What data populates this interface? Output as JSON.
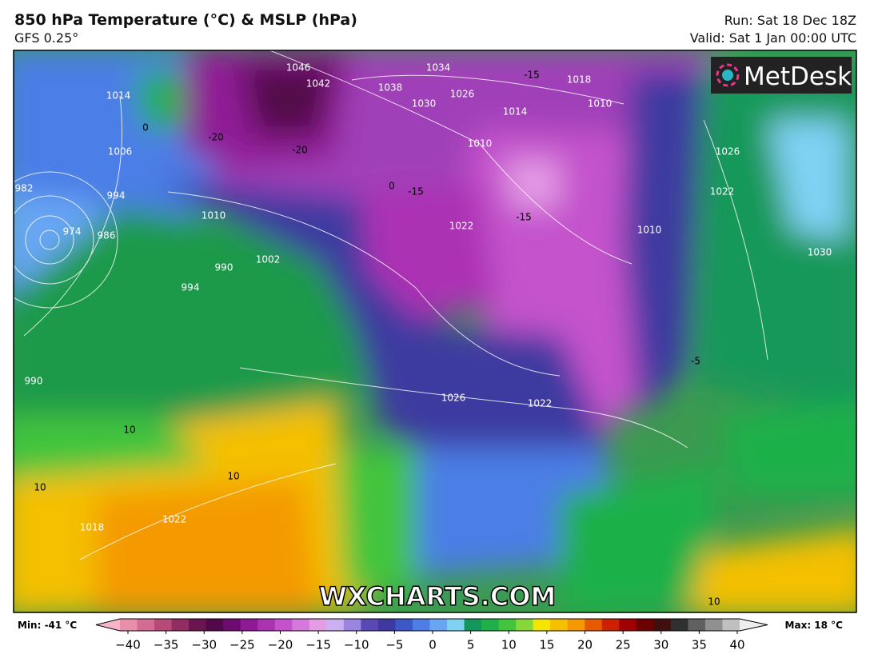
{
  "header": {
    "title": "850 hPa Temperature (°C) & MSLP (hPa)",
    "model": "GFS 0.25°",
    "run": "Run: Sat 18 Dec 18Z",
    "valid": "Valid: Sat 1 Jan 00:00 UTC"
  },
  "logo": "MetDesk",
  "watermark": "WXCHARTS.COM",
  "map_labels": {
    "isobars": [
      1014,
      1006,
      994,
      986,
      974,
      982,
      1010,
      990,
      994,
      1002,
      990,
      1038,
      1034,
      1030,
      1026,
      1018,
      1014,
      1010,
      1010,
      1022,
      1026,
      1022,
      1010,
      1026,
      1022,
      1030,
      1018,
      1022,
      1042,
      1046
    ],
    "temperatures": [
      -20,
      -20,
      -15,
      -15,
      -15,
      0,
      0,
      10,
      10,
      10,
      10,
      -5
    ]
  },
  "colorbar": {
    "min_label": "Min: -41 °C",
    "max_label": "Max: 18 °C",
    "range": [
      -40,
      40
    ],
    "ticks": [
      {
        "value": -40,
        "label": "−40"
      },
      {
        "value": -35,
        "label": "−35"
      },
      {
        "value": -30,
        "label": "−30"
      },
      {
        "value": -25,
        "label": "−25"
      },
      {
        "value": -20,
        "label": "−20"
      },
      {
        "value": -15,
        "label": "−15"
      },
      {
        "value": -10,
        "label": "−10"
      },
      {
        "value": -5,
        "label": "−5"
      },
      0,
      5,
      10,
      15,
      20,
      25,
      30,
      35,
      40
    ],
    "colors": [
      "#f7b3c8",
      "#e98fac",
      "#d46b92",
      "#b84a7a",
      "#922c63",
      "#6c1450",
      "#52084a",
      "#6e0a72",
      "#901a96",
      "#ac32b4",
      "#c452cc",
      "#d678dc",
      "#e49ce6",
      "#cdb0f2",
      "#9a86e0",
      "#5a48b4",
      "#3c3aa0",
      "#3c58c8",
      "#4c7ee6",
      "#68a6f4",
      "#80d2f4",
      "#12985a",
      "#1fb04a",
      "#42c43c",
      "#86d838",
      "#f4e600",
      "#f4c000",
      "#f49a00",
      "#e85a00",
      "#cc2000",
      "#a00000",
      "#6c0000",
      "#401010",
      "#303030",
      "#606060",
      "#909090",
      "#c0c0c0",
      "#eeeeee"
    ]
  }
}
